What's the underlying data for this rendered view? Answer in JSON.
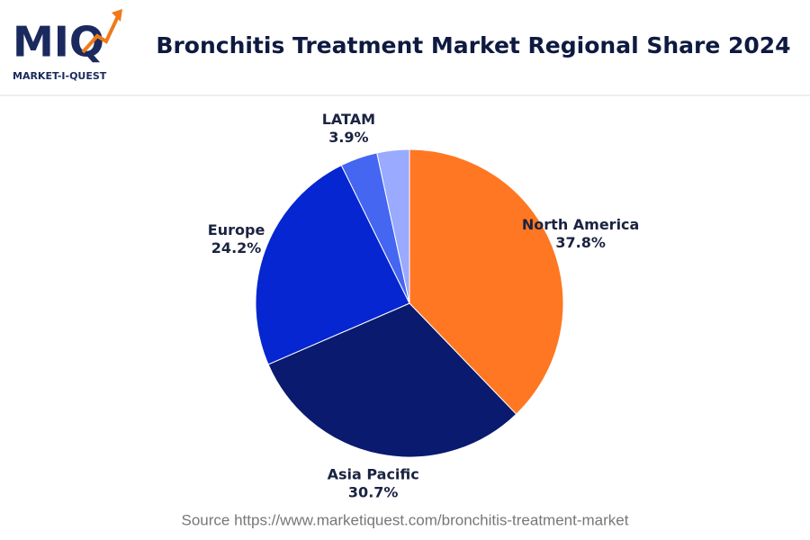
{
  "logo": {
    "mark": "MIQ",
    "name": "MARKET-I-QUEST"
  },
  "chart_data": {
    "type": "pie",
    "title": "Bronchitis Treatment Market Regional Share 2024",
    "categories": [
      "North America",
      "Asia Pacific",
      "Europe",
      "LATAM",
      null
    ],
    "values": [
      37.8,
      30.7,
      24.2,
      3.9,
      3.4
    ],
    "value_labels": [
      "37.8%",
      "30.7%",
      "24.2%",
      "3.9%",
      null
    ],
    "colors": [
      "#ff7722",
      "#0a1a6e",
      "#0526d0",
      "#4466f0",
      "#99aaff"
    ],
    "source": "Source https://www.marketiquest.com/bronchitis-treatment-market"
  }
}
